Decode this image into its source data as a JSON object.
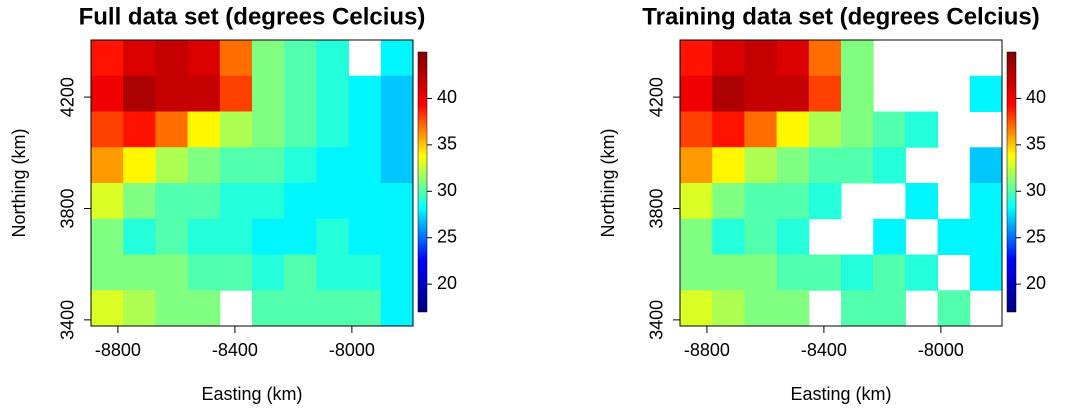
{
  "chart_data": [
    {
      "type": "heatmap",
      "title": "Full data set (degrees Celcius)",
      "xlabel": "Easting (km)",
      "ylabel": "Northing (km)",
      "xlim": [
        -8892,
        -7791
      ],
      "ylim": [
        3378,
        4405
      ],
      "xticks": [
        -8800,
        -8400,
        -8000
      ],
      "yticks": [
        3400,
        3800,
        4200
      ],
      "zlim": [
        17,
        45
      ],
      "zticks": [
        20,
        25,
        30,
        35,
        40
      ],
      "colors": [
        "#00007f",
        "#0000ff",
        "#00ffff",
        "#ffff00",
        "#ff0000",
        "#7f0000"
      ],
      "z": [
        [
          39,
          41,
          42,
          41,
          37,
          31,
          30,
          29,
          null,
          28
        ],
        [
          40,
          43,
          42,
          42,
          38,
          31,
          30,
          29,
          28,
          27
        ],
        [
          38,
          39,
          37,
          34,
          32,
          31,
          30,
          29,
          28,
          27
        ],
        [
          36,
          34,
          32,
          31,
          30,
          30,
          29,
          28,
          28,
          27
        ],
        [
          33,
          31,
          30,
          30,
          29,
          29,
          28,
          28,
          28,
          28
        ],
        [
          31,
          29,
          30,
          29,
          29,
          28,
          28,
          29,
          28,
          28
        ],
        [
          31,
          31,
          31,
          30,
          30,
          29,
          30,
          29,
          29,
          28
        ],
        [
          33,
          32,
          31,
          31,
          null,
          30,
          30,
          30,
          30,
          28
        ]
      ]
    },
    {
      "type": "heatmap",
      "title": "Training data set (degrees Celcius)",
      "xlabel": "Easting (km)",
      "ylabel": "Northing (km)",
      "xlim": [
        -8892,
        -7791
      ],
      "ylim": [
        3378,
        4405
      ],
      "xticks": [
        -8800,
        -8400,
        -8000
      ],
      "yticks": [
        3400,
        3800,
        4200
      ],
      "zlim": [
        17,
        45
      ],
      "zticks": [
        20,
        25,
        30,
        35,
        40
      ],
      "colors": [
        "#00007f",
        "#0000ff",
        "#00ffff",
        "#ffff00",
        "#ff0000",
        "#7f0000"
      ],
      "z": [
        [
          39,
          41,
          42,
          41,
          37,
          31,
          null,
          null,
          null,
          null
        ],
        [
          40,
          43,
          42,
          42,
          38,
          31,
          null,
          null,
          null,
          28
        ],
        [
          38,
          39,
          37,
          34,
          32,
          31,
          30,
          29,
          null,
          null
        ],
        [
          36,
          34,
          32,
          31,
          30,
          30,
          29,
          null,
          null,
          27
        ],
        [
          33,
          31,
          30,
          30,
          29,
          null,
          null,
          28,
          null,
          28
        ],
        [
          31,
          29,
          30,
          29,
          null,
          null,
          28,
          null,
          28,
          28
        ],
        [
          31,
          31,
          31,
          30,
          30,
          29,
          30,
          29,
          null,
          28
        ],
        [
          33,
          32,
          31,
          31,
          null,
          30,
          30,
          null,
          30,
          null
        ]
      ]
    }
  ]
}
